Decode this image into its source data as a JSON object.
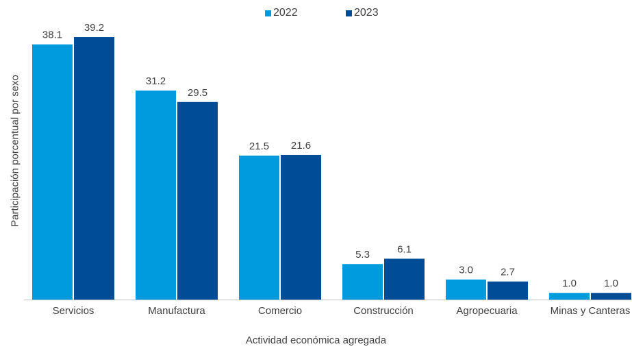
{
  "chart_data": {
    "type": "bar",
    "categories": [
      "Servicios",
      "Manufactura",
      "Comercio",
      "Construcción",
      "Agropecuaria",
      "Minas y Canteras"
    ],
    "series": [
      {
        "name": "2022",
        "values": [
          38.1,
          31.2,
          21.5,
          5.3,
          3.0,
          1.0
        ],
        "color": "#009ADE",
        "labels": [
          "38.1",
          "31.2",
          "21.5",
          "5.3",
          "3.0",
          "1.0"
        ]
      },
      {
        "name": "2023",
        "values": [
          39.2,
          29.5,
          21.6,
          6.1,
          2.7,
          1.0
        ],
        "color": "#004C97",
        "labels": [
          "39.2",
          "29.5",
          "21.6",
          "6.1",
          "2.7",
          "1.0"
        ]
      }
    ],
    "xlabel": "Actividad económica agregada",
    "ylabel": "Participación porcentual por sexo",
    "ylim": [
      0,
      40
    ],
    "grid": false,
    "legend_position": "top-center"
  }
}
